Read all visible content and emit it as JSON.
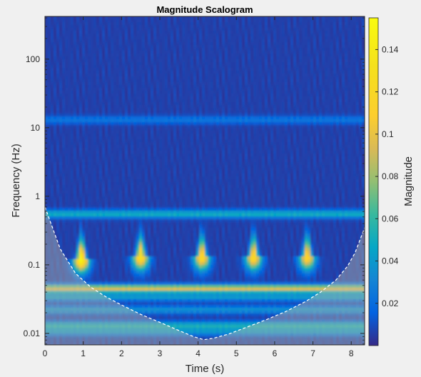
{
  "chart_data": {
    "type": "heatmap",
    "title": "Magnitude Scalogram",
    "xlabel": "Time (s)",
    "ylabel": "Frequency (Hz)",
    "xlim": [
      0,
      8.35
    ],
    "ylim": [
      0.0068,
      420
    ],
    "yscale": "log",
    "colormap": "parula",
    "x_ticks": [
      0,
      1,
      2,
      3,
      4,
      5,
      6,
      7,
      8
    ],
    "x_tick_labels": [
      "0",
      "1",
      "2",
      "3",
      "4",
      "5",
      "6",
      "7",
      "8"
    ],
    "y_ticks": [
      0.01,
      0.1,
      1,
      10,
      100
    ],
    "y_tick_labels": [
      "0.01",
      "0.1",
      "1",
      "10",
      "100"
    ],
    "colorbar": {
      "label": "Magnitude",
      "clim": [
        0,
        0.155
      ],
      "ticks": [
        0.02,
        0.04,
        0.06,
        0.08,
        0.1,
        0.12,
        0.14
      ],
      "tick_labels": [
        "0.02",
        "0.04",
        "0.06",
        "0.08",
        "0.1",
        "0.12",
        "0.14"
      ]
    },
    "background_magnitude": 0.006,
    "horizontal_bands": [
      {
        "frequency_hz": 13,
        "magnitude": 0.018
      },
      {
        "frequency_hz": 0.55,
        "magnitude": 0.045
      },
      {
        "frequency_hz": 0.045,
        "magnitude": 0.09
      },
      {
        "frequency_hz": 0.034,
        "magnitude": 0.035
      },
      {
        "frequency_hz": 0.022,
        "magnitude": 0.03
      },
      {
        "frequency_hz": 0.013,
        "magnitude": 0.045
      },
      {
        "frequency_hz": 0.0105,
        "magnitude": 0.03
      }
    ],
    "peaks": [
      {
        "time_s": 0.95,
        "frequency_hz": 0.12,
        "magnitude": 0.145
      },
      {
        "time_s": 2.5,
        "frequency_hz": 0.13,
        "magnitude": 0.125
      },
      {
        "time_s": 4.1,
        "frequency_hz": 0.13,
        "magnitude": 0.12
      },
      {
        "time_s": 5.45,
        "frequency_hz": 0.13,
        "magnitude": 0.12
      },
      {
        "time_s": 6.85,
        "frequency_hz": 0.13,
        "magnitude": 0.115
      }
    ],
    "cone_of_influence": {
      "time_s": [
        0,
        0.4,
        0.8,
        1.2,
        1.6,
        2.0,
        2.5,
        3.0,
        3.5,
        3.9,
        4.15,
        4.4,
        4.8,
        5.3,
        5.8,
        6.3,
        6.8,
        7.2,
        7.6,
        7.9,
        8.1,
        8.35
      ],
      "frequency_hz": [
        0.7,
        0.17,
        0.075,
        0.047,
        0.034,
        0.026,
        0.019,
        0.0145,
        0.011,
        0.0089,
        0.0081,
        0.0085,
        0.0098,
        0.0125,
        0.016,
        0.021,
        0.029,
        0.04,
        0.06,
        0.095,
        0.15,
        0.35
      ]
    }
  }
}
